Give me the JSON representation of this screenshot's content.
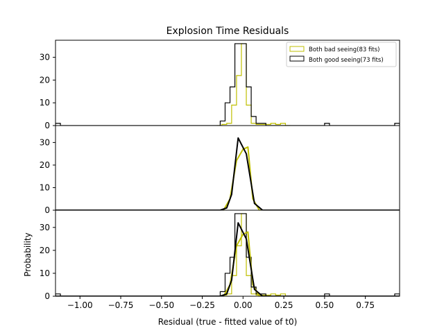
{
  "chart_data": {
    "type": "histogram",
    "title": "Explosion Time Residuals",
    "xlabel": "Residual (true - fitted value of t0)",
    "ylabel": "Probability",
    "xlim": [
      -1.15,
      0.96
    ],
    "ylim": [
      0,
      37.5
    ],
    "xticks": [
      "−1.00",
      "−0.75",
      "−0.50",
      "−0.25",
      "0.00",
      "0.25",
      "0.50",
      "0.75"
    ],
    "xtick_values": [
      -1.0,
      -0.75,
      -0.5,
      -0.25,
      0.0,
      0.25,
      0.5,
      0.75
    ],
    "yticks": [
      0,
      10,
      20,
      30
    ],
    "legend_position": "top-right",
    "colors": {
      "bad": "#bfbf00",
      "good": "#000000"
    },
    "panels": [
      {
        "kind": "step-histogram",
        "series": [
          {
            "key": "bad",
            "name": "Both bad seeing(83 fits)",
            "edges": [
              -0.16,
              -0.13,
              -0.1,
              -0.07,
              -0.04,
              -0.01,
              0.02,
              0.05,
              0.08,
              0.11,
              0.14,
              0.17,
              0.2,
              0.23,
              0.26,
              0.29
            ],
            "values": [
              0,
              0.5,
              1,
              9,
              22,
              36,
              9,
              1,
              0.5,
              0.5,
              0.5,
              1,
              0.5,
              1,
              0
            ]
          },
          {
            "key": "good",
            "name": "Both good seeing(73 fits)",
            "edges": [
              -1.15,
              -1.12,
              -0.14,
              -0.11,
              -0.08,
              -0.05,
              -0.02,
              0.02,
              0.05,
              0.08,
              0.11,
              0.14,
              0.17,
              0.5,
              0.53,
              0.93,
              0.96
            ],
            "values": [
              1,
              0,
              2,
              10,
              17,
              36,
              36,
              17,
              4,
              1,
              1,
              0,
              0,
              1,
              0,
              1
            ]
          }
        ]
      },
      {
        "kind": "density-curve",
        "series": [
          {
            "key": "bad",
            "x": [
              -1.15,
              -0.12,
              -0.08,
              -0.04,
              0.0,
              0.03,
              0.06,
              0.1,
              0.14,
              0.96
            ],
            "y": [
              0,
              0,
              5,
              22,
              27,
              28,
              5,
              0,
              0,
              0
            ]
          },
          {
            "key": "good",
            "x": [
              -1.15,
              -0.14,
              -0.1,
              -0.07,
              -0.03,
              0.02,
              0.07,
              0.12,
              0.16,
              0.96
            ],
            "y": [
              0,
              0,
              1,
              7,
              32,
              25,
              3,
              0,
              0,
              0
            ]
          }
        ]
      },
      {
        "kind": "step-histogram+density-curve",
        "series_ref": "both"
      }
    ]
  }
}
